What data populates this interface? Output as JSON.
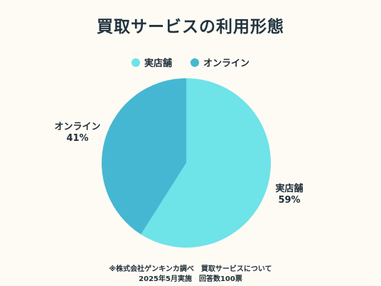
{
  "chart_data": {
    "type": "pie",
    "title": "買取サービスの利用形態",
    "legend_position": "top",
    "series": [
      {
        "name": "実店舗",
        "value": 59,
        "label": "59%",
        "color": "#6ee3e8"
      },
      {
        "name": "オンライン",
        "value": 41,
        "label": "41%",
        "color": "#46b7d3"
      }
    ]
  },
  "footnote": {
    "line1": "※株式会社ゲンキンカ調べ　買取サービスについて",
    "line2": "2025年5月実施　回答数100票"
  }
}
